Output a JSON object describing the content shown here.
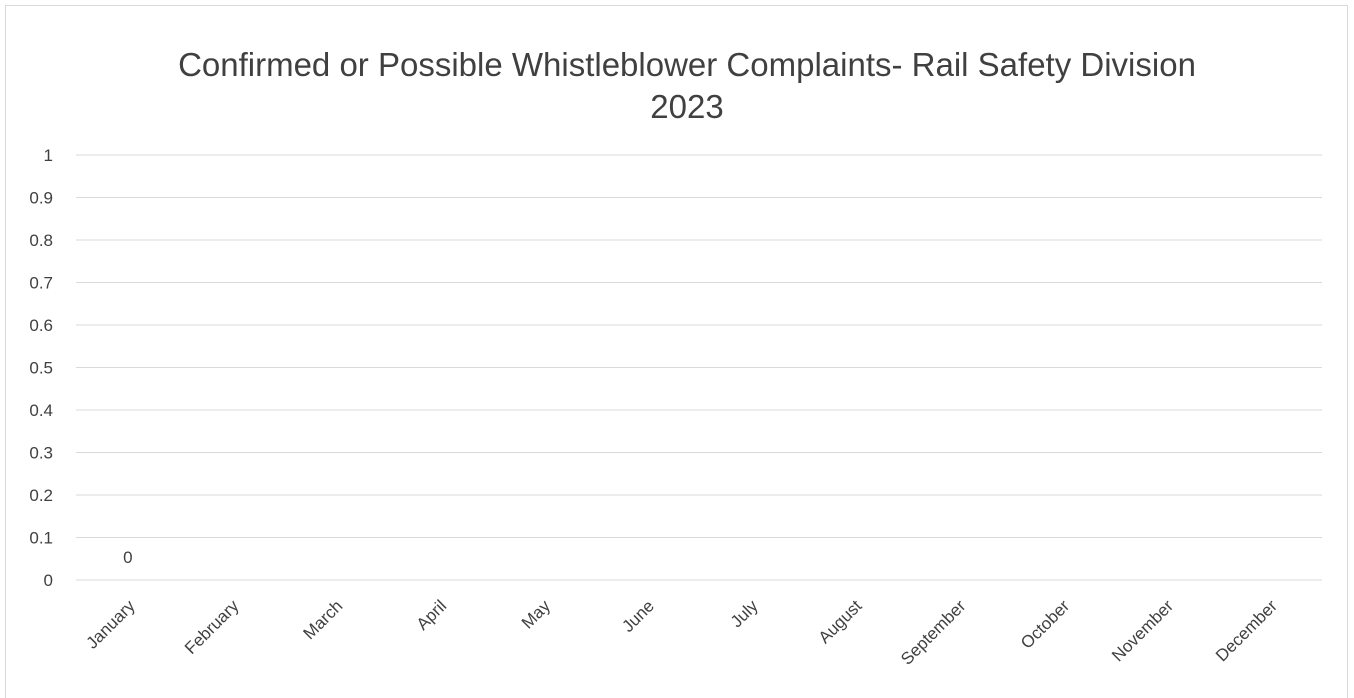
{
  "chart_data": {
    "type": "bar",
    "title": [
      "Confirmed or Possible Whistleblower Complaints- Rail Safety Division",
      "2023"
    ],
    "xlabel": "",
    "ylabel": "",
    "categories": [
      "January",
      "February",
      "March",
      "April",
      "May",
      "June",
      "July",
      "August",
      "September",
      "October",
      "November",
      "December"
    ],
    "values": [
      0,
      null,
      null,
      null,
      null,
      null,
      null,
      null,
      null,
      null,
      null,
      null
    ],
    "data_labels": [
      "0",
      "",
      "",
      "",
      "",
      "",
      "",
      "",
      "",
      "",
      "",
      ""
    ],
    "ylim": [
      0,
      1
    ],
    "yticks": [
      "0",
      "0.1",
      "0.2",
      "0.3",
      "0.4",
      "0.5",
      "0.6",
      "0.7",
      "0.8",
      "0.9",
      "1"
    ],
    "grid": true,
    "legend": "none",
    "colors": {
      "grid": "#d9d9d9",
      "text": "#404040",
      "border": "#d9d9d9"
    }
  }
}
